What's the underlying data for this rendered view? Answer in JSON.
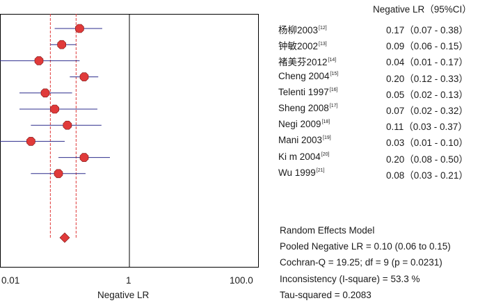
{
  "chart_data": {
    "type": "forest",
    "header": "Negative LR（95%CI）",
    "xlabel": "Negative LR",
    "x_scale": "log",
    "xlim": [
      0.01,
      100
    ],
    "ticks": [
      "0.01",
      "1",
      "100.0"
    ],
    "studies": [
      {
        "name": "杨柳2003",
        "ref": "[12]",
        "est": 0.17,
        "lo": 0.07,
        "hi": 0.38,
        "ci": "0.17（0.07 - 0.38）"
      },
      {
        "name": "钟敏2002",
        "ref": "[13]",
        "est": 0.09,
        "lo": 0.06,
        "hi": 0.15,
        "ci": "0.09（0.06 - 0.15）"
      },
      {
        "name": "褚美芬2012",
        "ref": "[14]",
        "est": 0.04,
        "lo": 0.01,
        "hi": 0.17,
        "ci": "0.04（0.01 - 0.17）"
      },
      {
        "name": "Cheng 2004",
        "ref": "[15]",
        "est": 0.2,
        "lo": 0.12,
        "hi": 0.33,
        "ci": "0.20（0.12 - 0.33）"
      },
      {
        "name": "Telenti 1997",
        "ref": "[16]",
        "est": 0.05,
        "lo": 0.02,
        "hi": 0.13,
        "ci": "0.05（0.02 - 0.13）"
      },
      {
        "name": "Sheng 2008",
        "ref": "[17]",
        "est": 0.07,
        "lo": 0.02,
        "hi": 0.32,
        "ci": "0.07（0.02 - 0.32）"
      },
      {
        "name": "Negi 2009",
        "ref": "[18]",
        "est": 0.11,
        "lo": 0.03,
        "hi": 0.37,
        "ci": "0.11（0.03 - 0.37）"
      },
      {
        "name": "Mani 2003",
        "ref": "[19]",
        "est": 0.03,
        "lo": 0.01,
        "hi": 0.1,
        "ci": "0.03（0.01 - 0.10）"
      },
      {
        "name": "Ki m 2004",
        "ref": "[20]",
        "est": 0.2,
        "lo": 0.08,
        "hi": 0.5,
        "ci": "0.20（0.08 - 0.50）"
      },
      {
        "name": "Wu 1999",
        "ref": "[21]",
        "est": 0.08,
        "lo": 0.03,
        "hi": 0.21,
        "ci": "0.08（0.03 - 0.21）"
      }
    ],
    "pooled": {
      "est": 0.1,
      "lo": 0.06,
      "hi": 0.15
    },
    "summary_lines": [
      "Random Effects Model",
      "Pooled Negative LR = 0.10 (0.06 to 0.15)",
      "Cochran-Q = 19.25; df = 9 (p = 0.0231)",
      "Inconsistency (I-square) = 53.3 %",
      "Tau-squared = 0.2083"
    ],
    "colors": {
      "marker": "#e03a3a",
      "ci_line": "#2b2b8c",
      "pooled_band": "#e03a3a",
      "frame": "#000000"
    }
  }
}
